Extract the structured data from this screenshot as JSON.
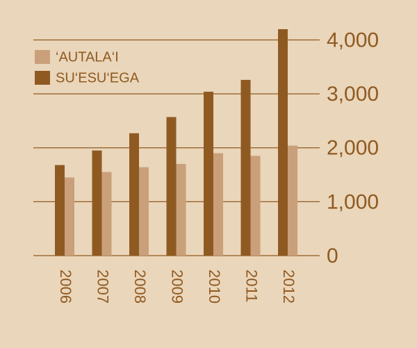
{
  "chart_data": {
    "type": "bar",
    "categories": [
      "2006",
      "2007",
      "2008",
      "2009",
      "2010",
      "2011",
      "2012"
    ],
    "series": [
      {
        "name": "SU‘ESU‘EGA",
        "color": "#8f5a22",
        "values": [
          1680,
          1950,
          2270,
          2570,
          3040,
          3260,
          4200
        ]
      },
      {
        "name": "‘AUTALA‘I",
        "color": "#c9a07a",
        "values": [
          1450,
          1550,
          1640,
          1700,
          1900,
          1850,
          2040
        ]
      }
    ],
    "ylim": [
      0,
      4200
    ],
    "yticks": [
      0,
      {
        "value": 1000,
        "label": "1,000"
      },
      {
        "value": 2000,
        "label": "2,000"
      },
      {
        "value": 3000,
        "label": "3,000"
      },
      {
        "value": 4000,
        "label": "4,000"
      }
    ],
    "grid": true
  }
}
